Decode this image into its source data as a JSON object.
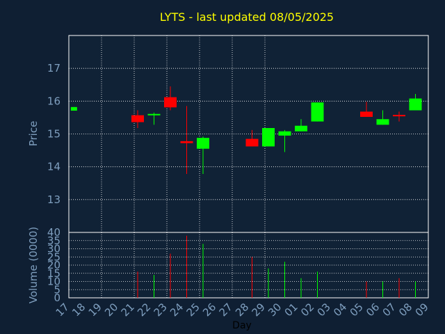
{
  "colors": {
    "background": "#0f1f33",
    "plot_background": "#102236",
    "grid": "#ffffff",
    "axis_text": "#7f9fbf",
    "title": "#ffff00",
    "up": "#00ff00",
    "down": "#ff0000"
  },
  "chart_data": [
    {
      "type": "candlestick",
      "title": "LYTS - last updated 08/05/2025",
      "ylabel": "Price",
      "ylim": [
        12.0,
        18.0
      ],
      "y_ticks": [
        "13",
        "14",
        "15",
        "16",
        "17"
      ],
      "x_ticks": [
        "17",
        "18",
        "19",
        "20",
        "21",
        "22",
        "23",
        "24",
        "25",
        "26",
        "27",
        "28",
        "29",
        "30",
        "01",
        "02",
        "03",
        "04",
        "05",
        "06",
        "07",
        "08",
        "09"
      ],
      "grid": true,
      "candles": [
        {
          "x": 0.1,
          "open": 15.71,
          "high": 15.82,
          "low": 15.71,
          "close": 15.82
        },
        {
          "x": 4,
          "open": 15.57,
          "high": 15.72,
          "low": 15.18,
          "close": 15.36
        },
        {
          "x": 5,
          "open": 15.59,
          "high": 15.65,
          "low": 15.28,
          "close": 15.61
        },
        {
          "x": 6,
          "open": 16.12,
          "high": 16.45,
          "low": 15.72,
          "close": 15.81
        },
        {
          "x": 7,
          "open": 14.78,
          "high": 15.85,
          "low": 13.78,
          "close": 14.72
        },
        {
          "x": 8,
          "open": 14.55,
          "high": 14.92,
          "low": 13.78,
          "close": 14.88
        },
        {
          "x": 11,
          "open": 14.85,
          "high": 15.12,
          "low": 14.62,
          "close": 14.62
        },
        {
          "x": 12,
          "open": 14.62,
          "high": 15.18,
          "low": 14.62,
          "close": 15.18
        },
        {
          "x": 13,
          "open": 14.95,
          "high": 15.12,
          "low": 14.45,
          "close": 15.08
        },
        {
          "x": 14,
          "open": 15.08,
          "high": 15.45,
          "low": 15.08,
          "close": 15.25
        },
        {
          "x": 15,
          "open": 15.38,
          "high": 15.96,
          "low": 15.38,
          "close": 15.96
        },
        {
          "x": 18,
          "open": 15.68,
          "high": 15.98,
          "low": 15.52,
          "close": 15.52
        },
        {
          "x": 19,
          "open": 15.28,
          "high": 15.72,
          "low": 15.28,
          "close": 15.45
        },
        {
          "x": 20,
          "open": 15.58,
          "high": 15.68,
          "low": 15.38,
          "close": 15.56
        },
        {
          "x": 21,
          "open": 15.72,
          "high": 16.22,
          "low": 15.72,
          "close": 16.08
        }
      ]
    },
    {
      "type": "bar",
      "ylabel": "Volume (0000)",
      "xlabel": "Day",
      "ylim": [
        0,
        40
      ],
      "y_ticks": [
        "0",
        "5",
        "10",
        "15",
        "20",
        "25",
        "30",
        "35",
        "40"
      ],
      "bars": [
        {
          "x": 4,
          "value": 16,
          "dir": "down"
        },
        {
          "x": 5,
          "value": 14,
          "dir": "up"
        },
        {
          "x": 6,
          "value": 27,
          "dir": "down"
        },
        {
          "x": 7,
          "value": 38,
          "dir": "down"
        },
        {
          "x": 8,
          "value": 33,
          "dir": "up"
        },
        {
          "x": 11,
          "value": 25,
          "dir": "down"
        },
        {
          "x": 12,
          "value": 18,
          "dir": "up"
        },
        {
          "x": 13,
          "value": 22,
          "dir": "up"
        },
        {
          "x": 14,
          "value": 12,
          "dir": "up"
        },
        {
          "x": 15,
          "value": 16,
          "dir": "up"
        },
        {
          "x": 18,
          "value": 10,
          "dir": "down"
        },
        {
          "x": 19,
          "value": 10,
          "dir": "up"
        },
        {
          "x": 20,
          "value": 12,
          "dir": "down"
        },
        {
          "x": 21,
          "value": 10,
          "dir": "up"
        }
      ]
    }
  ]
}
